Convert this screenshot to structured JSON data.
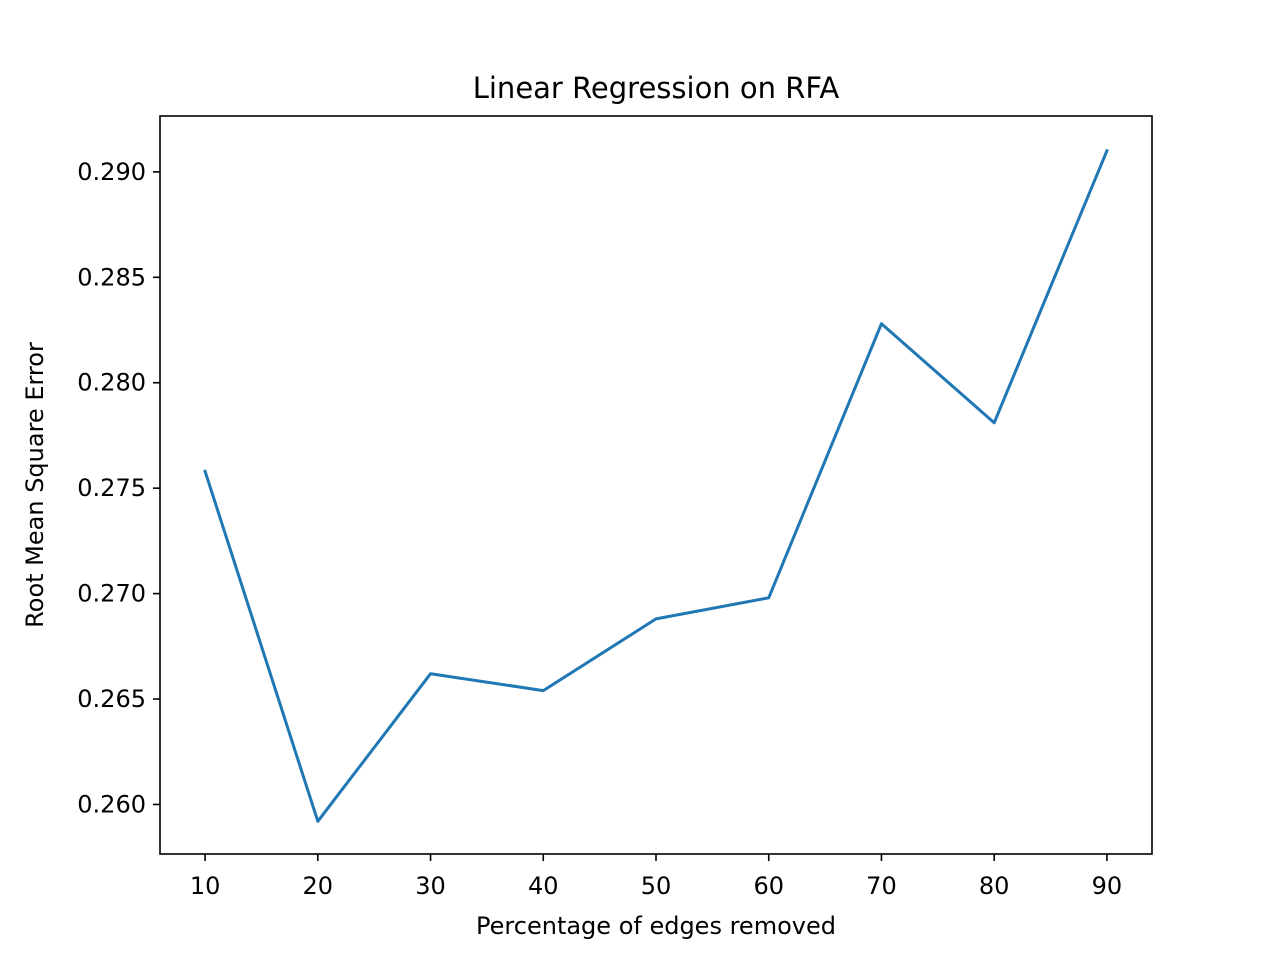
{
  "chart_data": {
    "type": "line",
    "title": "Linear Regression on RFA",
    "xlabel": "Percentage of edges removed",
    "ylabel": "Root Mean Square Error",
    "x": [
      10,
      20,
      30,
      40,
      50,
      60,
      70,
      80,
      90
    ],
    "series": [
      {
        "values": [
          0.2758,
          0.2592,
          0.2662,
          0.2654,
          0.2688,
          0.2698,
          0.2828,
          0.2781,
          0.291
        ]
      }
    ],
    "x_ticks": [
      10,
      20,
      30,
      40,
      50,
      60,
      70,
      80,
      90
    ],
    "x_tick_labels": [
      "10",
      "20",
      "30",
      "40",
      "50",
      "60",
      "70",
      "80",
      "90"
    ],
    "y_ticks": [
      0.26,
      0.265,
      0.27,
      0.275,
      0.28,
      0.285,
      0.29
    ],
    "y_tick_labels": [
      "0.260",
      "0.265",
      "0.270",
      "0.275",
      "0.280",
      "0.285",
      "0.290"
    ],
    "xlim": [
      6,
      94
    ],
    "ylim": [
      0.25765,
      0.29265
    ],
    "grid": false,
    "line_color": "#1f77b4"
  }
}
